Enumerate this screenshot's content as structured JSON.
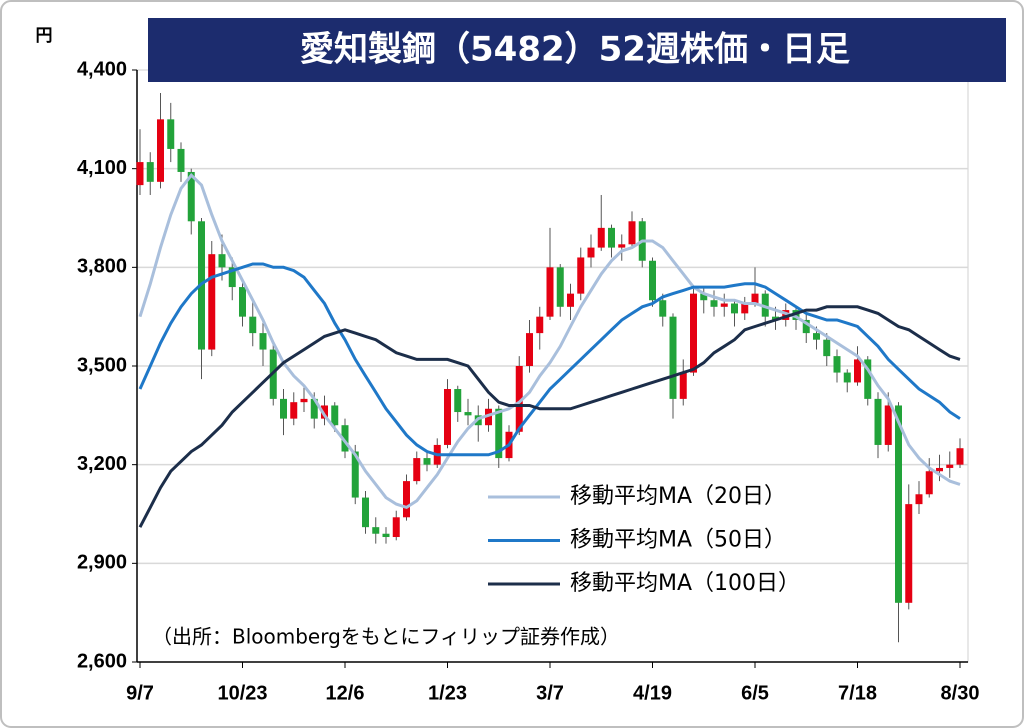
{
  "chart_data": {
    "type": "candlestick",
    "title": "愛知製鋼（5482）52週株価・日足",
    "unit_label": "円",
    "annotation": "（出所：Bloombergをもとにフィリップ証券作成）",
    "categories": [
      "9/7",
      null,
      null,
      null,
      null,
      null,
      null,
      null,
      null,
      null,
      "10/23",
      null,
      null,
      null,
      null,
      null,
      null,
      null,
      null,
      null,
      "12/6",
      null,
      null,
      null,
      null,
      null,
      null,
      null,
      null,
      null,
      "1/23",
      null,
      null,
      null,
      null,
      null,
      null,
      null,
      null,
      null,
      "3/7",
      null,
      null,
      null,
      null,
      null,
      null,
      null,
      null,
      null,
      "4/19",
      null,
      null,
      null,
      null,
      null,
      null,
      null,
      null,
      null,
      "6/5",
      null,
      null,
      null,
      null,
      null,
      null,
      null,
      null,
      null,
      "7/18",
      null,
      null,
      null,
      null,
      null,
      null,
      null,
      null,
      null,
      "8/30"
    ],
    "ylim": [
      2600,
      4400
    ],
    "yticks": [
      {
        "value": 2600,
        "label": "2,600"
      },
      {
        "value": 2900,
        "label": "2,900"
      },
      {
        "value": 3200,
        "label": "3,200"
      },
      {
        "value": 3500,
        "label": "3,500"
      },
      {
        "value": 3800,
        "label": "3,800"
      },
      {
        "value": 4100,
        "label": "4,100"
      },
      {
        "value": 4400,
        "label": "4,400"
      }
    ],
    "grid": true,
    "up_color": "#e50012",
    "down_color": "#22a33a",
    "open": [
      4050,
      4120,
      4060,
      4250,
      4160,
      4090,
      3940,
      3550,
      3840,
      3800,
      3740,
      3650,
      3600,
      3550,
      3400,
      3340,
      3390,
      3400,
      3340,
      3380,
      3320,
      3240,
      3100,
      3010,
      2990,
      2980,
      3040,
      3150,
      3220,
      3200,
      3260,
      3430,
      3360,
      3350,
      3320,
      3370,
      3220,
      3300,
      3500,
      3600,
      3650,
      3800,
      3680,
      3720,
      3830,
      3860,
      3920,
      3860,
      3870,
      3940,
      3820,
      3700,
      3650,
      3400,
      3480,
      3720,
      3700,
      3680,
      3690,
      3660,
      3690,
      3720,
      3650,
      3640,
      3670,
      3640,
      3600,
      3580,
      3530,
      3480,
      3450,
      3520,
      3400,
      3260,
      3380,
      2780,
      3080,
      3110,
      3180,
      3190,
      3200
    ],
    "high": [
      4220,
      4150,
      4330,
      4300,
      4180,
      4100,
      3950,
      3880,
      3900,
      3830,
      3760,
      3700,
      3640,
      3570,
      3430,
      3420,
      3440,
      3420,
      3410,
      3390,
      3340,
      3260,
      3120,
      3040,
      3010,
      3060,
      3170,
      3240,
      3240,
      3280,
      3460,
      3440,
      3400,
      3380,
      3400,
      3380,
      3320,
      3530,
      3640,
      3680,
      3920,
      3810,
      3750,
      3860,
      3900,
      4020,
      3930,
      3900,
      3970,
      3950,
      3830,
      3720,
      3660,
      3520,
      3740,
      3740,
      3730,
      3720,
      3700,
      3710,
      3800,
      3730,
      3680,
      3690,
      3680,
      3660,
      3620,
      3600,
      3550,
      3490,
      3560,
      3530,
      3420,
      3420,
      3390,
      3140,
      3150,
      3220,
      3230,
      3240,
      3280
    ],
    "low": [
      4020,
      4020,
      4040,
      4120,
      4060,
      3900,
      3460,
      3530,
      3760,
      3700,
      3620,
      3560,
      3500,
      3380,
      3290,
      3320,
      3360,
      3310,
      3320,
      3300,
      3220,
      3080,
      2990,
      2960,
      2960,
      2970,
      3030,
      3140,
      3180,
      3190,
      3250,
      3330,
      3320,
      3270,
      3300,
      3190,
      3210,
      3290,
      3480,
      3550,
      3640,
      3650,
      3640,
      3700,
      3800,
      3850,
      3830,
      3820,
      3860,
      3800,
      3680,
      3620,
      3340,
      3380,
      3470,
      3660,
      3650,
      3650,
      3620,
      3640,
      3680,
      3620,
      3610,
      3620,
      3610,
      3570,
      3550,
      3500,
      3450,
      3420,
      3440,
      3380,
      3220,
      3240,
      2660,
      2760,
      3050,
      3100,
      3150,
      3160,
      3190
    ],
    "close": [
      4120,
      4060,
      4250,
      4160,
      4090,
      3940,
      3550,
      3840,
      3800,
      3740,
      3650,
      3600,
      3550,
      3400,
      3340,
      3390,
      3400,
      3340,
      3380,
      3320,
      3240,
      3100,
      3010,
      2990,
      2980,
      3040,
      3150,
      3220,
      3200,
      3260,
      3430,
      3360,
      3350,
      3320,
      3370,
      3220,
      3300,
      3500,
      3600,
      3650,
      3800,
      3680,
      3720,
      3830,
      3860,
      3920,
      3860,
      3870,
      3940,
      3820,
      3700,
      3650,
      3400,
      3480,
      3720,
      3700,
      3680,
      3690,
      3660,
      3690,
      3720,
      3650,
      3640,
      3670,
      3640,
      3600,
      3580,
      3530,
      3480,
      3450,
      3520,
      3400,
      3260,
      3380,
      2780,
      3080,
      3110,
      3180,
      3190,
      3200,
      3250
    ],
    "series": [
      {
        "name": "移動平均MA（20日）",
        "color": "#a9bfdc",
        "values": [
          3650,
          3750,
          3860,
          3960,
          4040,
          4080,
          4050,
          3960,
          3880,
          3820,
          3760,
          3700,
          3640,
          3570,
          3510,
          3470,
          3440,
          3400,
          3350,
          3310,
          3270,
          3230,
          3180,
          3140,
          3100,
          3080,
          3070,
          3090,
          3130,
          3170,
          3220,
          3270,
          3310,
          3340,
          3350,
          3360,
          3370,
          3390,
          3420,
          3470,
          3510,
          3560,
          3620,
          3680,
          3730,
          3780,
          3820,
          3850,
          3860,
          3880,
          3880,
          3860,
          3820,
          3780,
          3740,
          3720,
          3710,
          3700,
          3700,
          3690,
          3690,
          3680,
          3670,
          3660,
          3650,
          3630,
          3610,
          3590,
          3570,
          3550,
          3530,
          3490,
          3440,
          3400,
          3330,
          3260,
          3220,
          3190,
          3170,
          3150,
          3140
        ]
      },
      {
        "name": "移動平均MA（50日）",
        "color": "#1f78c8",
        "values": [
          3430,
          3500,
          3570,
          3630,
          3680,
          3720,
          3750,
          3770,
          3780,
          3790,
          3800,
          3810,
          3810,
          3800,
          3800,
          3790,
          3770,
          3730,
          3690,
          3630,
          3580,
          3520,
          3470,
          3420,
          3370,
          3330,
          3290,
          3260,
          3240,
          3230,
          3230,
          3230,
          3230,
          3230,
          3230,
          3240,
          3260,
          3310,
          3350,
          3390,
          3430,
          3460,
          3490,
          3520,
          3550,
          3580,
          3610,
          3640,
          3660,
          3680,
          3690,
          3710,
          3720,
          3730,
          3740,
          3740,
          3740,
          3740,
          3745,
          3750,
          3750,
          3740,
          3720,
          3700,
          3680,
          3660,
          3650,
          3640,
          3640,
          3630,
          3620,
          3590,
          3560,
          3520,
          3490,
          3460,
          3430,
          3410,
          3390,
          3360,
          3340
        ]
      },
      {
        "name": "移動平均MA（100日）",
        "color": "#1c2e4a",
        "values": [
          3010,
          3070,
          3130,
          3180,
          3210,
          3240,
          3260,
          3290,
          3320,
          3360,
          3390,
          3420,
          3450,
          3480,
          3510,
          3530,
          3550,
          3570,
          3590,
          3600,
          3610,
          3600,
          3590,
          3580,
          3560,
          3540,
          3530,
          3520,
          3520,
          3520,
          3520,
          3510,
          3500,
          3460,
          3420,
          3390,
          3380,
          3380,
          3380,
          3370,
          3370,
          3370,
          3370,
          3380,
          3390,
          3400,
          3410,
          3420,
          3430,
          3440,
          3450,
          3460,
          3470,
          3480,
          3490,
          3510,
          3540,
          3560,
          3580,
          3610,
          3620,
          3630,
          3640,
          3650,
          3660,
          3670,
          3670,
          3680,
          3680,
          3680,
          3680,
          3670,
          3660,
          3640,
          3620,
          3610,
          3590,
          3570,
          3550,
          3530,
          3520
        ]
      }
    ]
  }
}
